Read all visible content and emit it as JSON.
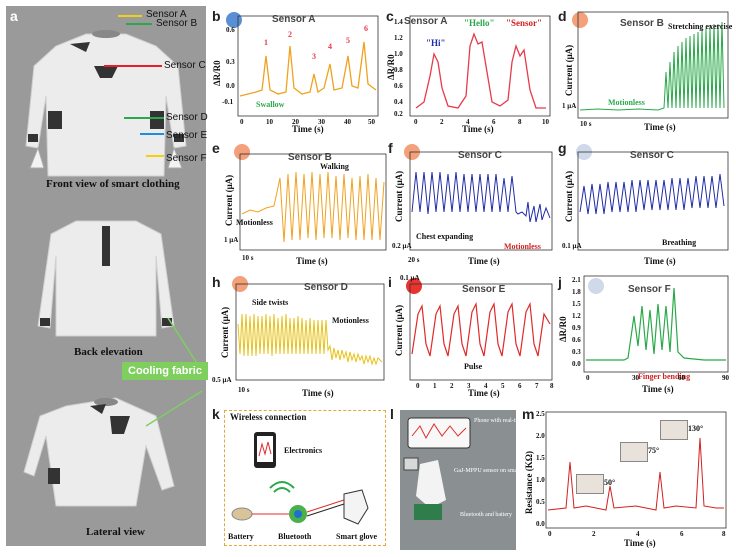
{
  "panel_a": {
    "label": "a",
    "sensors": [
      "Sensor A",
      "Sensor B",
      "Sensor C",
      "Sensor D",
      "Sensor E",
      "Sensor F"
    ],
    "captions": [
      "Front view of smart clothing",
      "Back elevation",
      "Lateral view"
    ],
    "cooling_fabric": "Cooling fabric"
  },
  "panels": {
    "b": {
      "label": "b",
      "title": "Sensor A",
      "xlabel": "Time (s)",
      "ylabel": "ΔR/R0",
      "xticks": [
        "0",
        "10",
        "20",
        "30",
        "40",
        "50"
      ],
      "yticks": [
        "0.6",
        "0.3",
        "0.0",
        "-0.1"
      ],
      "ann": "Swallow",
      "points": [
        "1",
        "2",
        "3",
        "4",
        "5",
        "6"
      ]
    },
    "c": {
      "label": "c",
      "title": "Sensor A",
      "xlabel": "Time (s)",
      "ylabel": "ΔR/R0",
      "xticks": [
        "0",
        "2",
        "4",
        "6",
        "8",
        "10"
      ],
      "yticks": [
        "1.4",
        "1.2",
        "1.0",
        "0.8",
        "0.6",
        "0.4",
        "0.2"
      ],
      "words": [
        "\"Hi\"",
        "\"Hello\"",
        "\"Sensor\""
      ]
    },
    "d": {
      "label": "d",
      "title": "Sensor B",
      "xlabel": "Time (s)",
      "ylabel": "Current (μA)",
      "ann1": "Motionless",
      "ann2": "Stretching exercise",
      "scale_x": "10 s",
      "scale_y": "1 μA"
    },
    "e": {
      "label": "e",
      "title": "Sensor B",
      "xlabel": "Time (s)",
      "ylabel": "Current (μA)",
      "ann1": "Motionless",
      "ann2": "Walking",
      "scale_x": "10 s",
      "scale_y": "1 μA"
    },
    "f": {
      "label": "f",
      "title": "Sensor C",
      "xlabel": "Time (s)",
      "ylabel": "Current (μA)",
      "ann1": "Chest expanding",
      "ann2": "Motionless",
      "scale_x": "20 s",
      "scale_y": "0.2 μA"
    },
    "g": {
      "label": "g",
      "title": "Sensor C",
      "xlabel": "Time (s)",
      "ylabel": "Current (μA)",
      "ann1": "Breathing",
      "scale_y": "0.1 μA"
    },
    "h": {
      "label": "h",
      "title": "Sensor D",
      "xlabel": "Time (s)",
      "ylabel": "Current (μA)",
      "ann1": "Side twists",
      "ann2": "Motionless",
      "scale_x": "10 s",
      "scale_y": "0.5 μA"
    },
    "i": {
      "label": "i",
      "title": "Sensor E",
      "xlabel": "Time (s)",
      "ylabel": "Current (μA)",
      "ann1": "Pulse",
      "scale_y": "0.1 μA",
      "xticks": [
        "0",
        "1",
        "2",
        "3",
        "4",
        "5",
        "6",
        "7",
        "8"
      ]
    },
    "j": {
      "label": "j",
      "title": "Sensor F",
      "xlabel": "Time (s)",
      "ylabel": "ΔR/R0",
      "ann1": "Finger bending",
      "xticks": [
        "0",
        "30",
        "60",
        "90"
      ],
      "yticks": [
        "2.1",
        "1.8",
        "1.5",
        "1.2",
        "0.9",
        "0.6",
        "0.3",
        "0.0"
      ]
    },
    "k": {
      "label": "k",
      "heading": "Wireless connection",
      "electronics": "Electronics",
      "items": [
        "Battery",
        "Bluetooth",
        "Smart glove"
      ]
    },
    "l": {
      "label": "l",
      "ann1": "Phone with real-time curves",
      "ann2": "GaJ-MPPU sensor on smart glove",
      "ann3": "Bluetooth and battery"
    },
    "m": {
      "label": "m",
      "xlabel": "Time (s)",
      "ylabel": "Resistance (KΩ)",
      "xticks": [
        "0",
        "2",
        "4",
        "6",
        "8"
      ],
      "yticks": [
        "2.5",
        "2.0",
        "1.5",
        "1.0",
        "0.5",
        "0.0"
      ],
      "angles": [
        "50°",
        "75°",
        "130°"
      ]
    }
  },
  "colors": {
    "orange": "#f0a21e",
    "red": "#e83a4a",
    "green": "#2aa84a",
    "blue": "#1f2aa8",
    "yellow": "#e8c21a",
    "darkred": "#d41f1f"
  }
}
